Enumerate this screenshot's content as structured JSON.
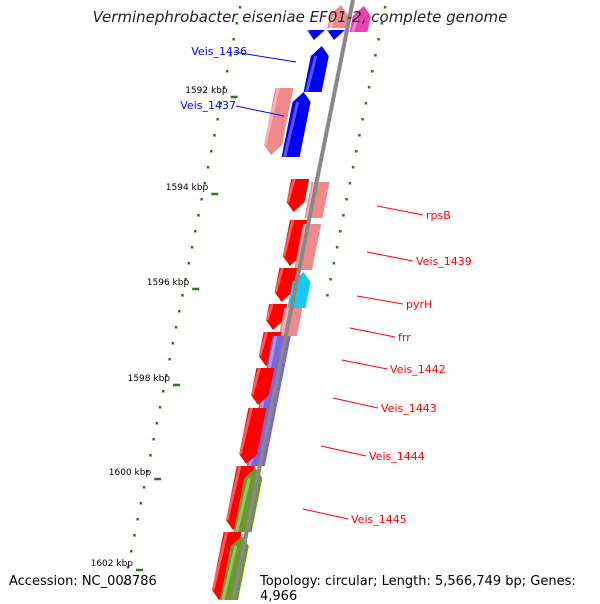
{
  "title": "Verminephrobacter eiseniae EF01-2, complete genome",
  "accession": "Accession: NC_008786",
  "topology": "Topology: circular; Length: 5,566,749 bp; Genes: 4,966",
  "colors": {
    "backbone": "#888888",
    "tick": "#2a7a1a",
    "blue": "#0000ff",
    "red": "#ff0000",
    "pink": "#f08a8a",
    "magenta": "#ee3fb0",
    "cyan": "#17c8f0",
    "purple": "#7766dd",
    "olive": "#6b9a28"
  },
  "kbp_labels": [
    "1592 kbp",
    "1594 kbp",
    "1596 kbp",
    "1598 kbp",
    "1600 kbp",
    "1602 kbp"
  ],
  "gene_labels_left": [
    "Veis_1436",
    "Veis_1437"
  ],
  "gene_labels_right": [
    "rpsB",
    "Veis_1439",
    "pyrH",
    "frr",
    "Veis_1442",
    "Veis_1443",
    "Veis_1444",
    "Veis_1445"
  ]
}
